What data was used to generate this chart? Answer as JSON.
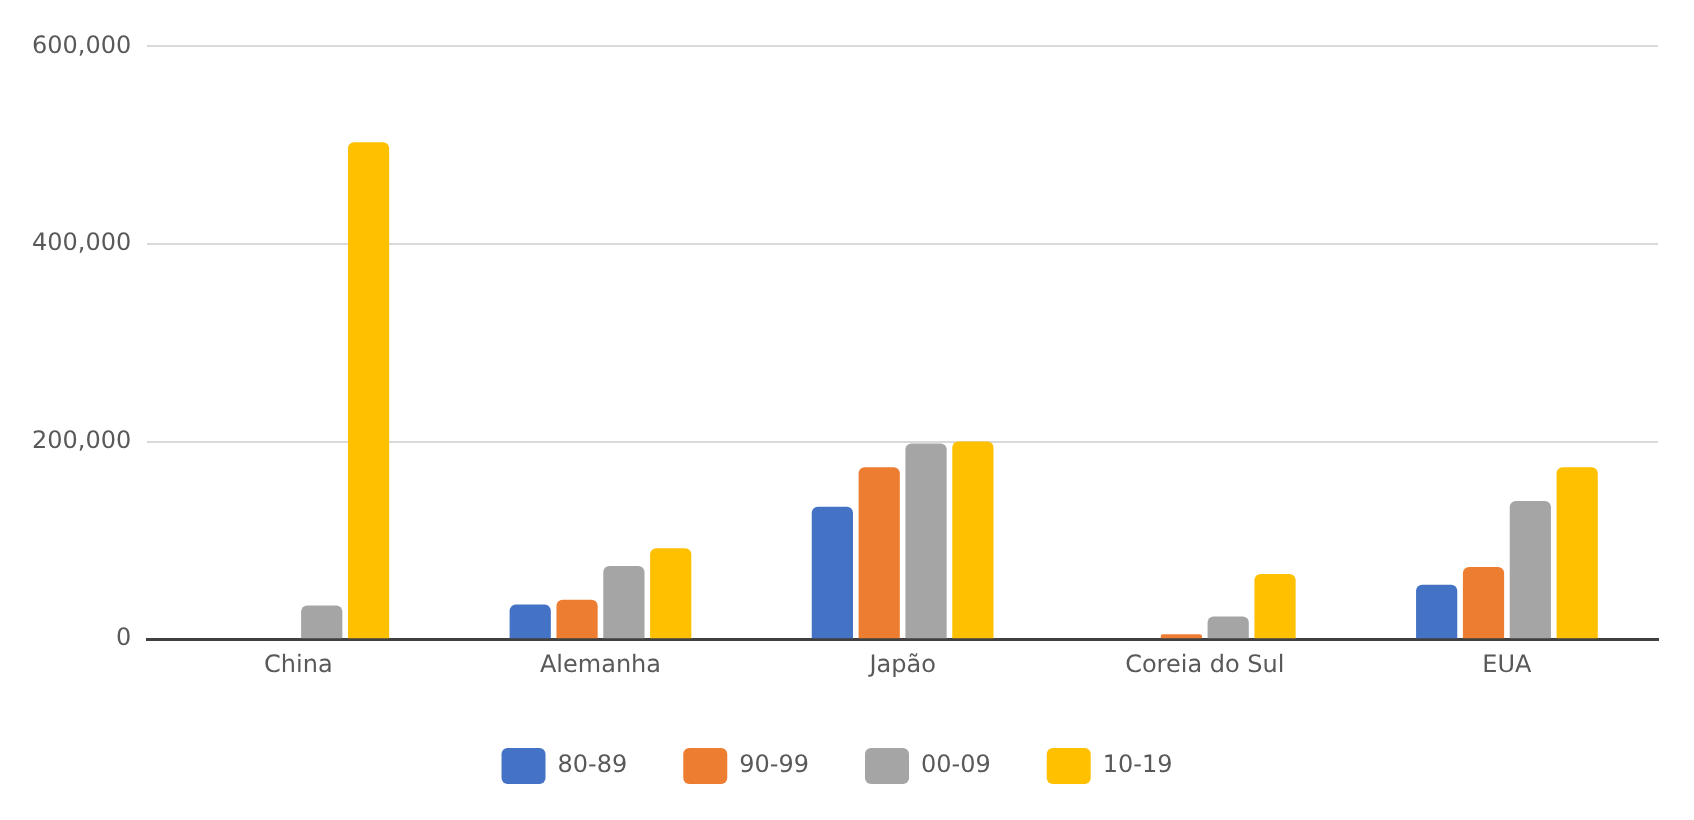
{
  "chart_data": {
    "type": "bar",
    "categories": [
      "China",
      "Alemanha",
      "Japão",
      "Coreia do Sul",
      "EUA"
    ],
    "series": [
      {
        "name": "80-89",
        "color": "#4472c4",
        "values": [
          null,
          35000,
          134000,
          null,
          55000
        ]
      },
      {
        "name": "90-99",
        "color": "#ed7d31",
        "values": [
          null,
          40000,
          174000,
          5000,
          73000
        ]
      },
      {
        "name": "00-09",
        "color": "#a5a5a5",
        "values": [
          34000,
          74000,
          198000,
          23000,
          140000
        ]
      },
      {
        "name": "10-19",
        "color": "#ffc000",
        "values": [
          503000,
          92000,
          200000,
          66000,
          174000
        ]
      }
    ],
    "ylim": [
      0,
      600000
    ],
    "yticks": [
      {
        "value": 0,
        "label": "0"
      },
      {
        "value": 200000,
        "label": "200,000"
      },
      {
        "value": 400000,
        "label": "400,000"
      },
      {
        "value": 600000,
        "label": "600,000"
      }
    ],
    "grid": "y",
    "legend": "bottom"
  }
}
